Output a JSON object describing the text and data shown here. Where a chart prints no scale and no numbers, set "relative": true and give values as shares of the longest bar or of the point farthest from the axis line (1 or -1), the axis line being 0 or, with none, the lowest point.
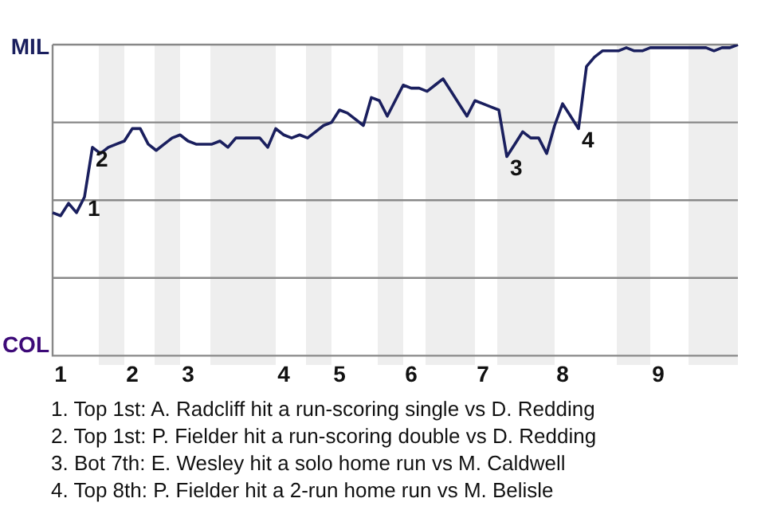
{
  "chart_data": {
    "type": "line",
    "relative": true,
    "categories": [
      null,
      "1",
      null,
      null,
      null,
      null,
      null,
      null,
      null,
      null,
      "2",
      null,
      null,
      null,
      null,
      null,
      null,
      "3",
      null,
      null,
      null,
      null,
      null,
      null,
      null,
      null,
      null,
      null,
      null,
      "4",
      null,
      null,
      null,
      null,
      null,
      null,
      "5",
      null,
      null,
      null,
      null,
      null,
      null,
      null,
      null,
      "6",
      null,
      null,
      null,
      null,
      null,
      null,
      null,
      null,
      "7",
      null,
      null,
      null,
      null,
      null,
      null,
      null,
      null,
      null,
      "8",
      null,
      null,
      null,
      null,
      null,
      null,
      null,
      null,
      null,
      null,
      null,
      "9",
      null,
      null,
      null,
      null,
      null,
      null,
      null,
      null,
      null,
      null
    ],
    "series": [
      {
        "color": "#1a1f5e",
        "values": [
          0.46,
          0.45,
          0.49,
          0.46,
          0.51,
          0.67,
          0.65,
          0.67,
          0.68,
          0.69,
          0.73,
          0.73,
          0.68,
          0.66,
          0.68,
          0.7,
          0.71,
          0.69,
          0.68,
          0.68,
          0.68,
          0.69,
          0.67,
          0.7,
          0.7,
          0.7,
          0.7,
          0.67,
          0.73,
          0.71,
          0.7,
          0.71,
          0.7,
          0.72,
          0.74,
          0.75,
          0.79,
          0.78,
          0.76,
          0.74,
          0.83,
          0.82,
          0.77,
          0.82,
          0.87,
          0.86,
          0.86,
          0.85,
          0.87,
          0.89,
          0.85,
          0.81,
          0.77,
          0.82,
          0.81,
          0.8,
          0.79,
          0.64,
          0.68,
          0.72,
          0.7,
          0.7,
          0.65,
          0.74,
          0.81,
          0.77,
          0.73,
          0.93,
          0.96,
          0.98,
          0.98,
          0.98,
          0.99,
          0.98,
          0.98,
          0.99,
          0.99,
          0.99,
          0.99,
          0.99,
          0.99,
          0.99,
          0.99,
          0.98,
          0.99,
          0.99,
          1.0
        ]
      }
    ],
    "legend": false,
    "marker": "none",
    "line_style": "solid",
    "ref_lines": [
      {
        "axis": "y",
        "value": 0.25,
        "color": "#888888"
      },
      {
        "axis": "y",
        "value": 0.5,
        "color": "#888888"
      },
      {
        "axis": "y",
        "value": 0.75,
        "color": "#888888"
      },
      {
        "axis": "y",
        "value": 1,
        "color": "#888888"
      }
    ],
    "annotations": [
      "MIL",
      "COL",
      "1",
      "2",
      "3",
      "4",
      "1. Top 1st: A. Radcliff hit a run-scoring single vs D. Redding",
      "2. Top 1st: P. Fielder hit a run-scoring double vs D. Redding",
      "3. Bot 7th: E. Wesley hit a solo home run vs M. Caldwell",
      "4. Top 8th: P. Fielder hit a 2-run home run vs M. Belisle"
    ]
  }
}
